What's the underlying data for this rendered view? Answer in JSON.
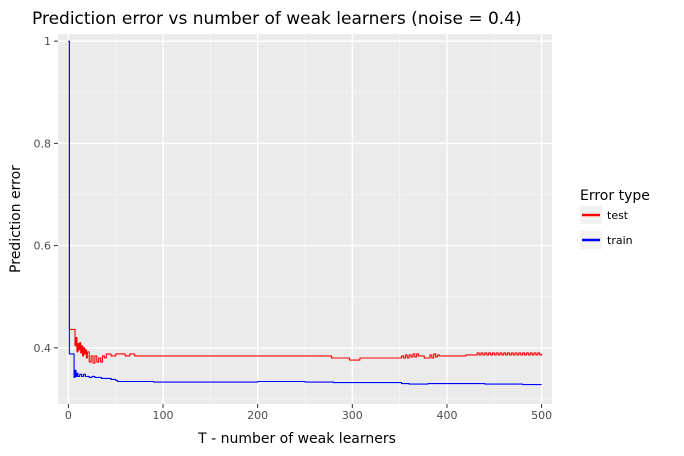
{
  "chart_data": {
    "type": "line",
    "title": "Prediction error vs number of weak learners (noise = 0.4)",
    "xlabel": "T - number of weak learners",
    "ylabel": "Prediction error",
    "xlim": [
      -11,
      511
    ],
    "ylim": [
      0.29,
      1.014
    ],
    "xticks": [
      0,
      100,
      200,
      300,
      400,
      500
    ],
    "yticks": [
      0.4,
      0.6,
      0.8,
      1.0
    ],
    "ytick_labels": [
      "0.4",
      "0.6",
      "0.8",
      "1"
    ],
    "grid": true,
    "legend": {
      "title": "Error type",
      "position": "right"
    },
    "series": [
      {
        "name": "test",
        "color": "#ff0000",
        "points": [
          [
            0,
            1.0
          ],
          [
            1,
            0.436
          ],
          [
            2,
            0.436
          ],
          [
            3,
            0.436
          ],
          [
            5,
            0.436
          ],
          [
            6,
            0.436
          ],
          [
            7,
            0.404
          ],
          [
            8,
            0.42
          ],
          [
            9,
            0.392
          ],
          [
            10,
            0.408
          ],
          [
            11,
            0.396
          ],
          [
            12,
            0.41
          ],
          [
            13,
            0.39
          ],
          [
            14,
            0.404
          ],
          [
            15,
            0.384
          ],
          [
            16,
            0.4
          ],
          [
            17,
            0.388
          ],
          [
            18,
            0.396
          ],
          [
            19,
            0.38
          ],
          [
            20,
            0.392
          ],
          [
            22,
            0.372
          ],
          [
            24,
            0.384
          ],
          [
            26,
            0.37
          ],
          [
            28,
            0.384
          ],
          [
            30,
            0.372
          ],
          [
            32,
            0.38
          ],
          [
            34,
            0.372
          ],
          [
            36,
            0.384
          ],
          [
            38,
            0.38
          ],
          [
            40,
            0.388
          ],
          [
            45,
            0.384
          ],
          [
            50,
            0.388
          ],
          [
            55,
            0.388
          ],
          [
            60,
            0.384
          ],
          [
            65,
            0.388
          ],
          [
            70,
            0.384
          ],
          [
            75,
            0.384
          ],
          [
            80,
            0.384
          ],
          [
            100,
            0.384
          ],
          [
            150,
            0.384
          ],
          [
            200,
            0.384
          ],
          [
            250,
            0.384
          ],
          [
            276,
            0.384
          ],
          [
            278,
            0.38
          ],
          [
            295,
            0.38
          ],
          [
            297,
            0.376
          ],
          [
            306,
            0.376
          ],
          [
            308,
            0.38
          ],
          [
            340,
            0.38
          ],
          [
            350,
            0.38
          ],
          [
            352,
            0.384
          ],
          [
            354,
            0.38
          ],
          [
            356,
            0.386
          ],
          [
            358,
            0.38
          ],
          [
            360,
            0.386
          ],
          [
            362,
            0.382
          ],
          [
            364,
            0.388
          ],
          [
            366,
            0.382
          ],
          [
            368,
            0.388
          ],
          [
            370,
            0.384
          ],
          [
            374,
            0.384
          ],
          [
            376,
            0.38
          ],
          [
            380,
            0.38
          ],
          [
            382,
            0.386
          ],
          [
            384,
            0.38
          ],
          [
            386,
            0.388
          ],
          [
            388,
            0.382
          ],
          [
            390,
            0.386
          ],
          [
            392,
            0.384
          ],
          [
            396,
            0.384
          ],
          [
            400,
            0.384
          ],
          [
            410,
            0.384
          ],
          [
            420,
            0.386
          ],
          [
            430,
            0.386
          ],
          [
            432,
            0.39
          ],
          [
            434,
            0.386
          ],
          [
            436,
            0.39
          ],
          [
            438,
            0.386
          ],
          [
            440,
            0.39
          ],
          [
            442,
            0.386
          ],
          [
            444,
            0.39
          ],
          [
            446,
            0.386
          ],
          [
            448,
            0.39
          ],
          [
            450,
            0.386
          ],
          [
            452,
            0.39
          ],
          [
            454,
            0.386
          ],
          [
            456,
            0.39
          ],
          [
            458,
            0.386
          ],
          [
            460,
            0.39
          ],
          [
            462,
            0.386
          ],
          [
            464,
            0.39
          ],
          [
            466,
            0.386
          ],
          [
            468,
            0.39
          ],
          [
            470,
            0.386
          ],
          [
            472,
            0.39
          ],
          [
            474,
            0.386
          ],
          [
            476,
            0.39
          ],
          [
            478,
            0.386
          ],
          [
            480,
            0.39
          ],
          [
            482,
            0.386
          ],
          [
            484,
            0.39
          ],
          [
            486,
            0.386
          ],
          [
            488,
            0.39
          ],
          [
            490,
            0.386
          ],
          [
            492,
            0.39
          ],
          [
            494,
            0.386
          ],
          [
            496,
            0.39
          ],
          [
            498,
            0.386
          ],
          [
            500,
            0.388
          ]
        ]
      },
      {
        "name": "train",
        "color": "#0000ff",
        "points": [
          [
            0,
            1.0
          ],
          [
            1,
            0.388
          ],
          [
            2,
            0.388
          ],
          [
            3,
            0.388
          ],
          [
            4,
            0.388
          ],
          [
            5,
            0.388
          ],
          [
            6,
            0.342
          ],
          [
            7,
            0.356
          ],
          [
            8,
            0.344
          ],
          [
            9,
            0.35
          ],
          [
            10,
            0.344
          ],
          [
            12,
            0.348
          ],
          [
            14,
            0.344
          ],
          [
            16,
            0.348
          ],
          [
            18,
            0.344
          ],
          [
            20,
            0.344
          ],
          [
            22,
            0.342
          ],
          [
            25,
            0.344
          ],
          [
            28,
            0.342
          ],
          [
            30,
            0.342
          ],
          [
            35,
            0.34
          ],
          [
            40,
            0.34
          ],
          [
            45,
            0.338
          ],
          [
            50,
            0.336
          ],
          [
            52,
            0.334
          ],
          [
            60,
            0.334
          ],
          [
            70,
            0.334
          ],
          [
            80,
            0.334
          ],
          [
            90,
            0.333
          ],
          [
            100,
            0.333
          ],
          [
            120,
            0.333
          ],
          [
            150,
            0.333
          ],
          [
            170,
            0.333
          ],
          [
            200,
            0.334
          ],
          [
            230,
            0.334
          ],
          [
            250,
            0.333
          ],
          [
            280,
            0.332
          ],
          [
            300,
            0.332
          ],
          [
            320,
            0.332
          ],
          [
            340,
            0.332
          ],
          [
            352,
            0.33
          ],
          [
            360,
            0.329
          ],
          [
            380,
            0.33
          ],
          [
            400,
            0.33
          ],
          [
            420,
            0.33
          ],
          [
            440,
            0.329
          ],
          [
            460,
            0.329
          ],
          [
            480,
            0.328
          ],
          [
            500,
            0.328
          ]
        ]
      }
    ]
  }
}
